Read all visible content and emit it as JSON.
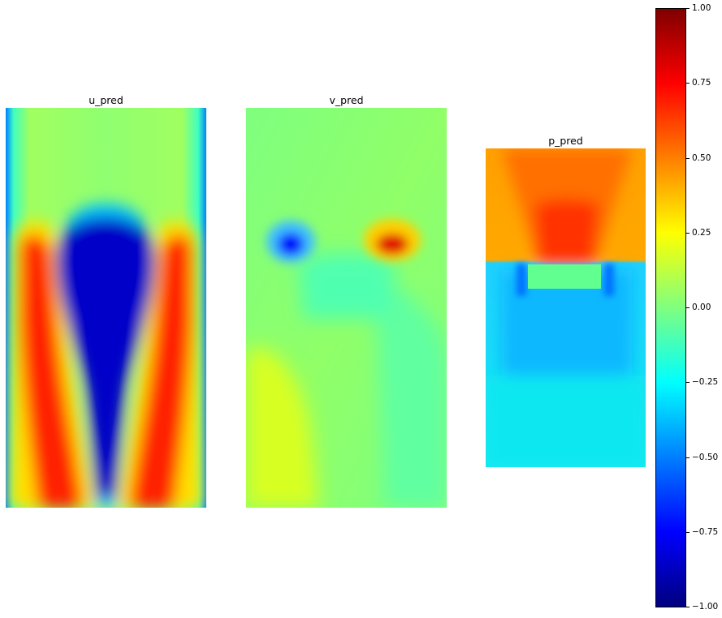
{
  "figure": {
    "panels": [
      {
        "title": "u_pred"
      },
      {
        "title": "v_pred"
      },
      {
        "title": "p_pred"
      }
    ],
    "colormap": "jet",
    "colorbar_ticks": [
      "1.00",
      "0.75",
      "0.50",
      "0.25",
      "0.00",
      "−0.25",
      "−0.50",
      "−0.75",
      "−1.00"
    ]
  },
  "chart_data": [
    {
      "type": "heatmap",
      "title": "u_pred",
      "colormap": "jet",
      "clim": [
        -1.0,
        1.0
      ],
      "description_values": {
        "wake_core": -1.0,
        "side_jets": 0.9,
        "far_field": 0.05,
        "edges": -0.6
      }
    },
    {
      "type": "heatmap",
      "title": "v_pred",
      "colormap": "jet",
      "clim": [
        -1.0,
        1.0
      ],
      "description_values": {
        "left_vortex": -0.7,
        "right_vortex": 0.85,
        "background": 0.05,
        "lower_left": 0.25
      }
    },
    {
      "type": "heatmap",
      "title": "p_pred",
      "colormap": "jet",
      "clim": [
        -1.0,
        1.0
      ],
      "description_values": {
        "upstream_stagnation": 0.75,
        "upper_region": 0.55,
        "wake": -0.35,
        "lower_region": -0.3
      }
    },
    {
      "type": "colorbar",
      "range": [
        -1.0,
        1.0
      ],
      "ticks": [
        1.0,
        0.75,
        0.5,
        0.25,
        0.0,
        -0.25,
        -0.5,
        -0.75,
        -1.0
      ]
    }
  ]
}
